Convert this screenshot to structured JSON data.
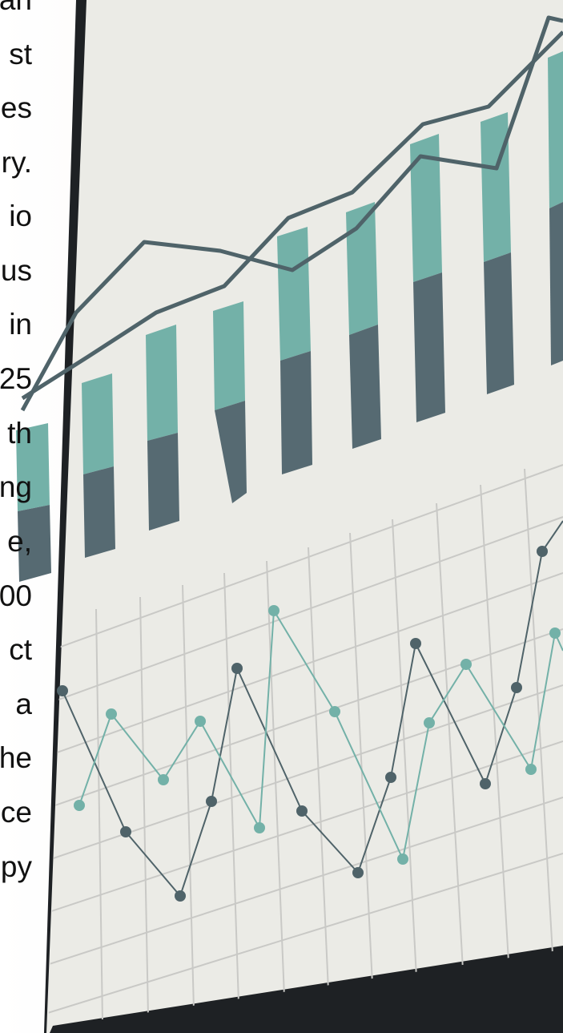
{
  "text_fragments": [
    "an",
    "st",
    "es",
    "ry.",
    "io",
    "us",
    "in",
    "25",
    "th",
    "ng",
    "e,",
    "00",
    "ct",
    "a",
    "he",
    "ce",
    "py"
  ]
}
